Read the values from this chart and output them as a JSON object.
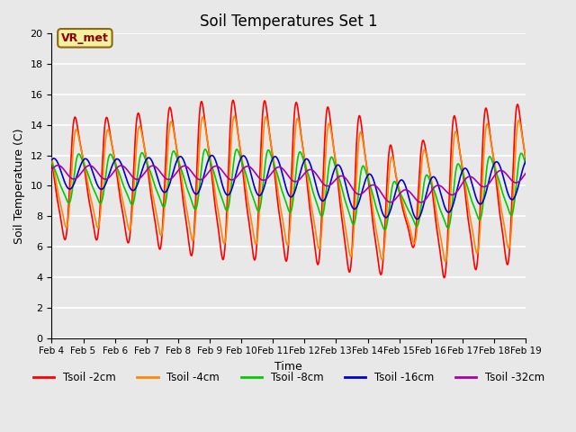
{
  "title": "Soil Temperatures Set 1",
  "xlabel": "Time",
  "ylabel": "Soil Temperature (C)",
  "ylim": [
    0,
    20
  ],
  "yticks": [
    0,
    2,
    4,
    6,
    8,
    10,
    12,
    14,
    16,
    18,
    20
  ],
  "xtick_labels": [
    "Feb 4",
    "Feb 5",
    "Feb 6",
    "Feb 7",
    "Feb 8",
    "Feb 9",
    "Feb 10",
    "Feb 11",
    "Feb 12",
    "Feb 13",
    "Feb 14",
    "Feb 15",
    "Feb 16",
    "Feb 17",
    "Feb 18",
    "Feb 19"
  ],
  "series_colors": {
    "Tsoil -2cm": "#ff0000",
    "Tsoil -4cm": "#ff8800",
    "Tsoil -8cm": "#00cc00",
    "Tsoil -16cm": "#0000cc",
    "Tsoil -32cm": "#aa00aa"
  },
  "annotation_text": "VR_met",
  "plot_background": "#e8e8e8",
  "grid_color": "#ffffff",
  "title_fontsize": 12,
  "figsize": [
    6.4,
    4.8
  ],
  "dpi": 100
}
